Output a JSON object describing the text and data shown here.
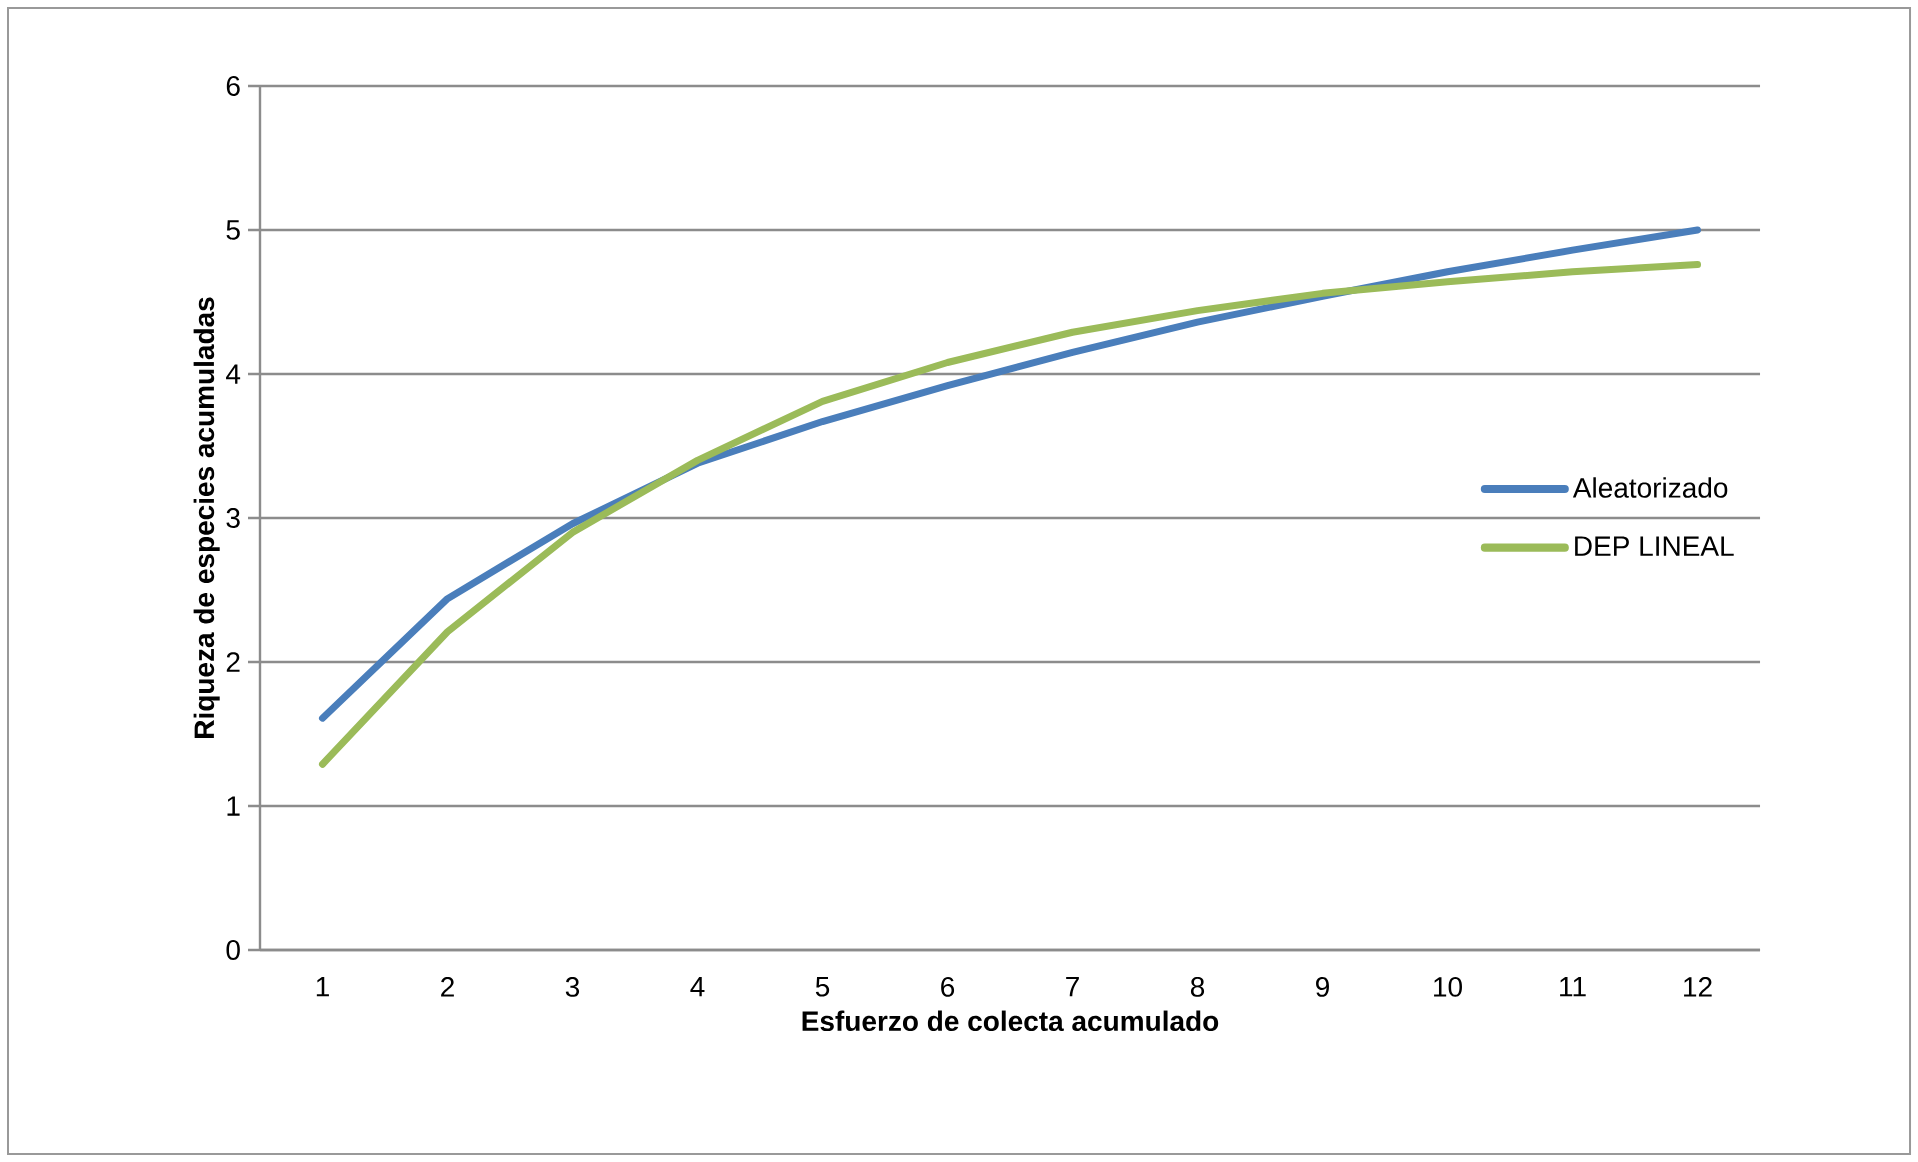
{
  "chart_data": {
    "type": "line",
    "xlabel": "Esfuerzo de colecta acumulado",
    "ylabel": "Riqueza de especies acumuladas",
    "categories": [
      "1",
      "2",
      "3",
      "4",
      "5",
      "6",
      "7",
      "8",
      "9",
      "10",
      "11",
      "12"
    ],
    "series": [
      {
        "name": "Aleatorizado",
        "color": "#4a7ebb",
        "values": [
          1.61,
          2.44,
          2.96,
          3.38,
          3.67,
          3.92,
          4.15,
          4.36,
          4.54,
          4.71,
          4.86,
          5.0
        ]
      },
      {
        "name": "DEP LINEAL",
        "color": "#9bbb59",
        "values": [
          1.29,
          2.21,
          2.9,
          3.4,
          3.81,
          4.08,
          4.29,
          4.44,
          4.56,
          4.64,
          4.71,
          4.76
        ]
      }
    ],
    "ylim": [
      0,
      6
    ],
    "yticks": [
      0,
      1,
      2,
      3,
      4,
      5,
      6
    ],
    "grid": "y",
    "legend": "right",
    "marker": "none",
    "line_style": "solid"
  }
}
